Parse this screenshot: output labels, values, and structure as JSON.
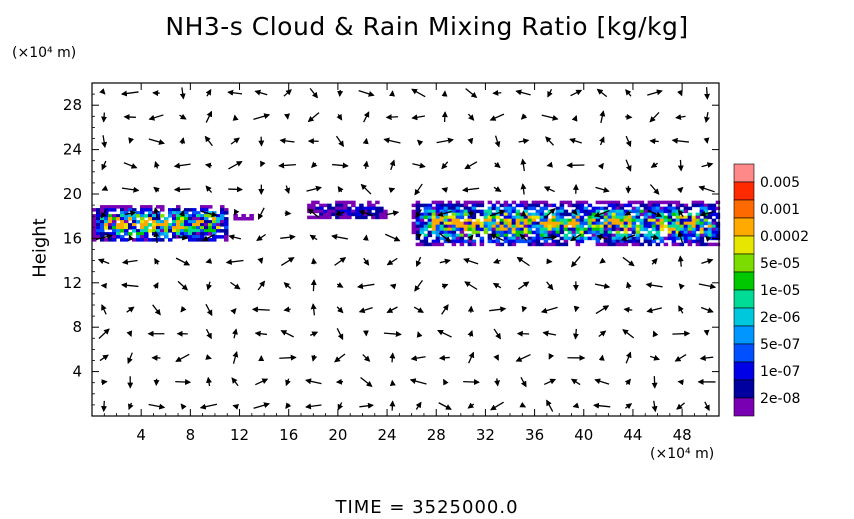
{
  "chart_data": {
    "type": "heatmap",
    "title": "NH3-s Cloud & Rain Mixing Ratio [kg/kg]",
    "ylabel": "Height",
    "x_unit": "(×10⁴ m)",
    "y_unit": "(×10⁴ m)",
    "xlim": [
      0,
      51
    ],
    "ylim": [
      0,
      30
    ],
    "x_ticks": [
      "4",
      "8",
      "12",
      "16",
      "20",
      "24",
      "28",
      "32",
      "36",
      "40",
      "44",
      "48"
    ],
    "y_ticks": [
      "4",
      "8",
      "12",
      "16",
      "20",
      "24",
      "28"
    ],
    "colorbar": {
      "labels": [
        "0.005",
        "0.001",
        "0.0002",
        "5e-05",
        "1e-05",
        "2e-06",
        "5e-07",
        "1e-07",
        "2e-08"
      ],
      "colors": [
        "#ff8888",
        "#ff2a00",
        "#ff6a00",
        "#ffaa00",
        "#e6e600",
        "#7cdc00",
        "#00c800",
        "#00dc96",
        "#00c8dc",
        "#0096ff",
        "#0050ff",
        "#0000e6",
        "#0000a0",
        "#7a00b4"
      ]
    },
    "cloud_regions": [
      {
        "x": [
          0,
          11
        ],
        "y": [
          15.8,
          19.0
        ],
        "max_level": "0.0002"
      },
      {
        "x": [
          11.5,
          13
        ],
        "y": [
          17.8,
          18.2
        ],
        "max_level": "2e-08"
      },
      {
        "x": [
          17.5,
          24
        ],
        "y": [
          17.8,
          19.4
        ],
        "max_level": "1e-07"
      },
      {
        "x": [
          26,
          51
        ],
        "y": [
          15.5,
          19.4
        ],
        "max_level": "0.0002"
      }
    ],
    "vector_field": "wind vectors on a regular grid"
  },
  "footer": {
    "time_label": "TIME  =  3525000.0"
  }
}
